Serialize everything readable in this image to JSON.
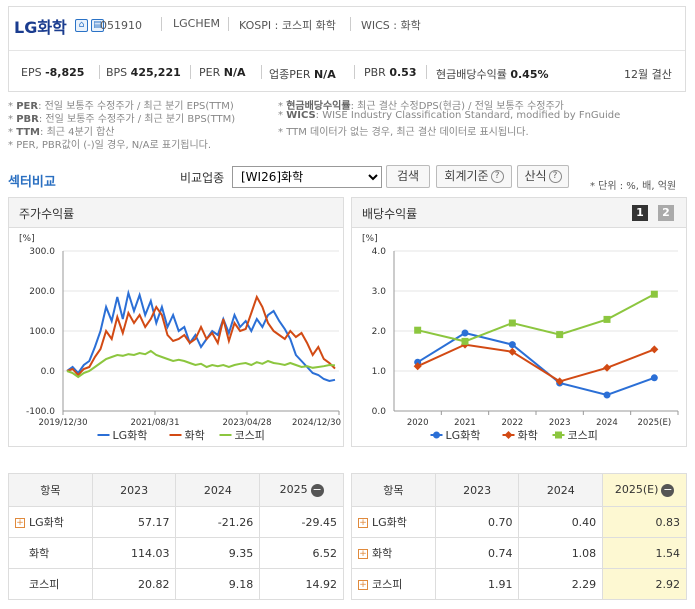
{
  "header": {
    "company_name": "LG화학",
    "stock_code": "051910",
    "english_name": "LGCHEM",
    "market": "KOSPI : 코스피 화학",
    "wics": "WICS : 화학",
    "stats": [
      {
        "label": "EPS",
        "value": "-8,825"
      },
      {
        "label": "BPS",
        "value": "425,221"
      },
      {
        "label": "PER",
        "value": "N/A"
      },
      {
        "label": "업종PER",
        "value": "N/A"
      },
      {
        "label": "PBR",
        "value": "0.53"
      },
      {
        "label": "현금배당수익률",
        "value": "0.45%"
      }
    ],
    "settlement": "12월 결산"
  },
  "notes": {
    "left": [
      {
        "key": "PER",
        "text": ": 전일 보통주 수정주가 / 최근 분기 EPS(TTM)"
      },
      {
        "key": "PBR",
        "text": ": 전일 보통주 수정주가 / 최근 분기 BPS(TTM)"
      },
      {
        "key": "TTM",
        "text": ": 최근 4분기 합산"
      },
      {
        "key": "",
        "text": "PER, PBR값이 (-)일 경우, N/A로 표기됩니다."
      }
    ],
    "right": [
      {
        "key": "현금배당수익률",
        "text": ": 최근 결산 수정DPS(현금) / 전일 보통주 수정주가"
      },
      {
        "key": "WICS",
        "text": ": WISE Industry Classification Standard, modified by FnGuide"
      },
      {
        "key": "",
        "text": "TTM 데이터가 없는 경우, 최근 결산 데이터로 표시됩니다."
      }
    ]
  },
  "sector": {
    "title": "섹터비교",
    "compare_label": "비교업종",
    "selected_industry": "[WI26]화학",
    "search_label": "검색",
    "accounting_label": "회계기준",
    "formula_label": "산식",
    "unit_label": "* 단위 : %, 배, 억원"
  },
  "panels": {
    "price_title": "주가수익률",
    "dividend_title": "배당수익률",
    "page1": "1",
    "page2": "2"
  },
  "colors": {
    "lg": "#2b6fd6",
    "chem": "#d24a14",
    "kospi": "#8cc63f"
  },
  "chart_data": [
    {
      "type": "line",
      "title": "주가수익률",
      "ylabel": "[%]",
      "ylim": [
        -100,
        300
      ],
      "yticks": [
        "300.0",
        "200.0",
        "100.0",
        "0.0",
        "-100.0"
      ],
      "xticks": [
        "2019/12/30",
        "2021/08/31",
        "2023/04/28",
        "2024/12/30"
      ],
      "series": [
        {
          "name": "LG화학",
          "values": [
            0,
            10,
            -5,
            15,
            25,
            60,
            100,
            160,
            125,
            185,
            130,
            195,
            150,
            190,
            140,
            175,
            120,
            160,
            110,
            140,
            100,
            110,
            70,
            90,
            60,
            80,
            100,
            90,
            130,
            95,
            140,
            110,
            125,
            100,
            130,
            110,
            140,
            150,
            125,
            105,
            80,
            40,
            25,
            10,
            -5,
            -10,
            -20,
            -25,
            -22
          ]
        },
        {
          "name": "화학",
          "values": [
            0,
            5,
            -10,
            5,
            10,
            35,
            55,
            100,
            80,
            135,
            95,
            145,
            120,
            140,
            110,
            130,
            160,
            140,
            90,
            75,
            80,
            90,
            70,
            80,
            110,
            80,
            95,
            70,
            130,
            75,
            120,
            100,
            105,
            145,
            185,
            160,
            120,
            100,
            90,
            80,
            100,
            85,
            95,
            70,
            40,
            60,
            30,
            20,
            6
          ]
        },
        {
          "name": "코스피",
          "values": [
            0,
            -5,
            -15,
            -5,
            0,
            10,
            20,
            30,
            35,
            40,
            38,
            42,
            40,
            45,
            42,
            50,
            40,
            35,
            30,
            25,
            28,
            25,
            20,
            15,
            18,
            10,
            15,
            12,
            15,
            10,
            15,
            18,
            20,
            15,
            22,
            18,
            25,
            20,
            18,
            15,
            20,
            15,
            10,
            12,
            8,
            10,
            12,
            15,
            14
          ]
        }
      ]
    },
    {
      "type": "line",
      "title": "배당수익률",
      "ylabel": "[%]",
      "ylim": [
        0,
        4
      ],
      "yticks": [
        "4.0",
        "3.0",
        "2.0",
        "1.0",
        "0.0"
      ],
      "categories": [
        "2020",
        "2021",
        "2022",
        "2023",
        "2024",
        "2025(E)"
      ],
      "series": [
        {
          "name": "LG화학",
          "values": [
            1.22,
            1.95,
            1.66,
            0.7,
            0.4,
            0.83
          ]
        },
        {
          "name": "화학",
          "values": [
            1.12,
            1.66,
            1.48,
            0.74,
            1.08,
            1.54
          ]
        },
        {
          "name": "코스피",
          "values": [
            2.02,
            1.74,
            2.2,
            1.91,
            2.29,
            2.92
          ]
        }
      ]
    }
  ],
  "price_table": {
    "header_label": "항목",
    "years": [
      "2023",
      "2024",
      "2025"
    ],
    "rows": [
      {
        "name": "LG화학",
        "values": [
          "57.17",
          "-21.26",
          "-29.45"
        ]
      },
      {
        "name": "화학",
        "values": [
          "114.03",
          "9.35",
          "6.52"
        ]
      },
      {
        "name": "코스피",
        "values": [
          "20.82",
          "9.18",
          "14.92"
        ]
      }
    ]
  },
  "dividend_table": {
    "header_label": "항목",
    "years": [
      "2023",
      "2024",
      "2025(E)"
    ],
    "rows": [
      {
        "name": "LG화학",
        "values": [
          "0.70",
          "0.40",
          "0.83"
        ]
      },
      {
        "name": "화학",
        "values": [
          "0.74",
          "1.08",
          "1.54"
        ]
      },
      {
        "name": "코스피",
        "values": [
          "1.91",
          "2.29",
          "2.92"
        ]
      }
    ]
  }
}
